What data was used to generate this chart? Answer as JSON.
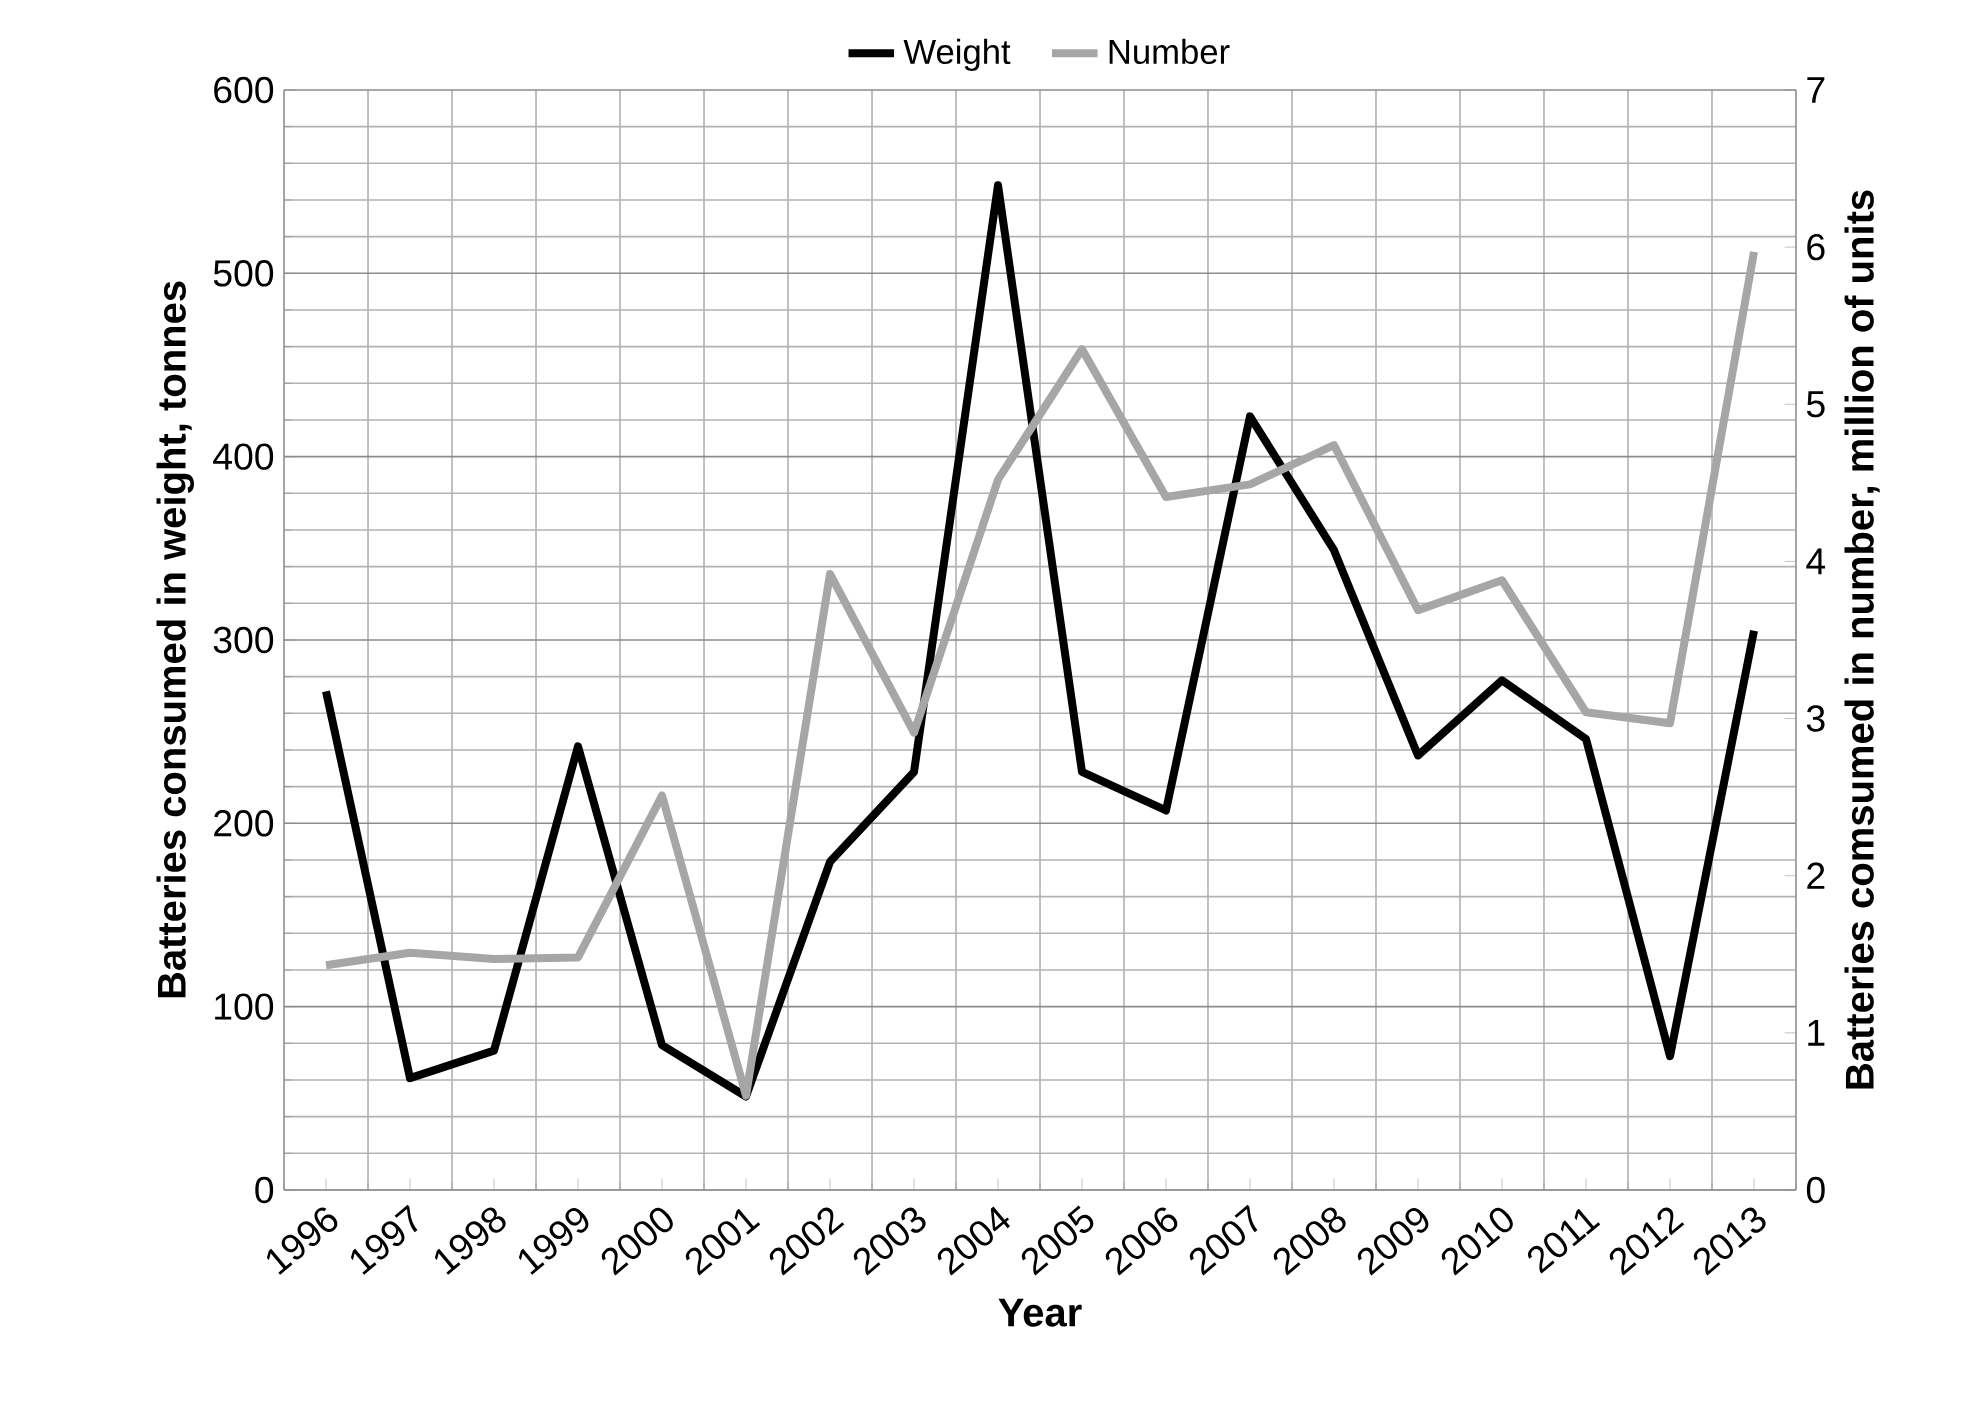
{
  "chart_data": {
    "type": "line",
    "xlabel": "Year",
    "ylabel": "Batteries consumed in weight, tonnes",
    "y2label": "Batteries comsumed in number, million of units",
    "categories": [
      "1996",
      "1997",
      "1998",
      "1999",
      "2000",
      "2001",
      "2002",
      "2003",
      "2004",
      "2005",
      "2006",
      "2007",
      "2008",
      "2009",
      "2010",
      "2011",
      "2012",
      "2013"
    ],
    "series": [
      {
        "name": "Weight",
        "color": "#000000",
        "values": [
          272,
          61,
          76,
          242,
          79,
          51,
          179,
          228,
          548,
          228,
          207,
          422,
          349,
          237,
          278,
          246,
          73,
          305
        ]
      },
      {
        "name": "Number",
        "color": "#a6a6a6",
        "axis": "y2",
        "values": [
          1.43,
          1.51,
          1.47,
          1.48,
          2.51,
          0.6,
          3.92,
          2.91,
          4.52,
          5.35,
          4.41,
          4.49,
          4.74,
          3.69,
          3.88,
          3.04,
          2.97,
          5.97
        ]
      }
    ],
    "ylim": [
      0,
      600
    ],
    "yticks": [
      0,
      100,
      200,
      300,
      400,
      500,
      600
    ],
    "y2lim": [
      0,
      7
    ],
    "y2ticks": [
      0,
      1,
      2,
      3,
      4,
      5,
      6,
      7
    ],
    "grid": true,
    "legend": "top"
  }
}
